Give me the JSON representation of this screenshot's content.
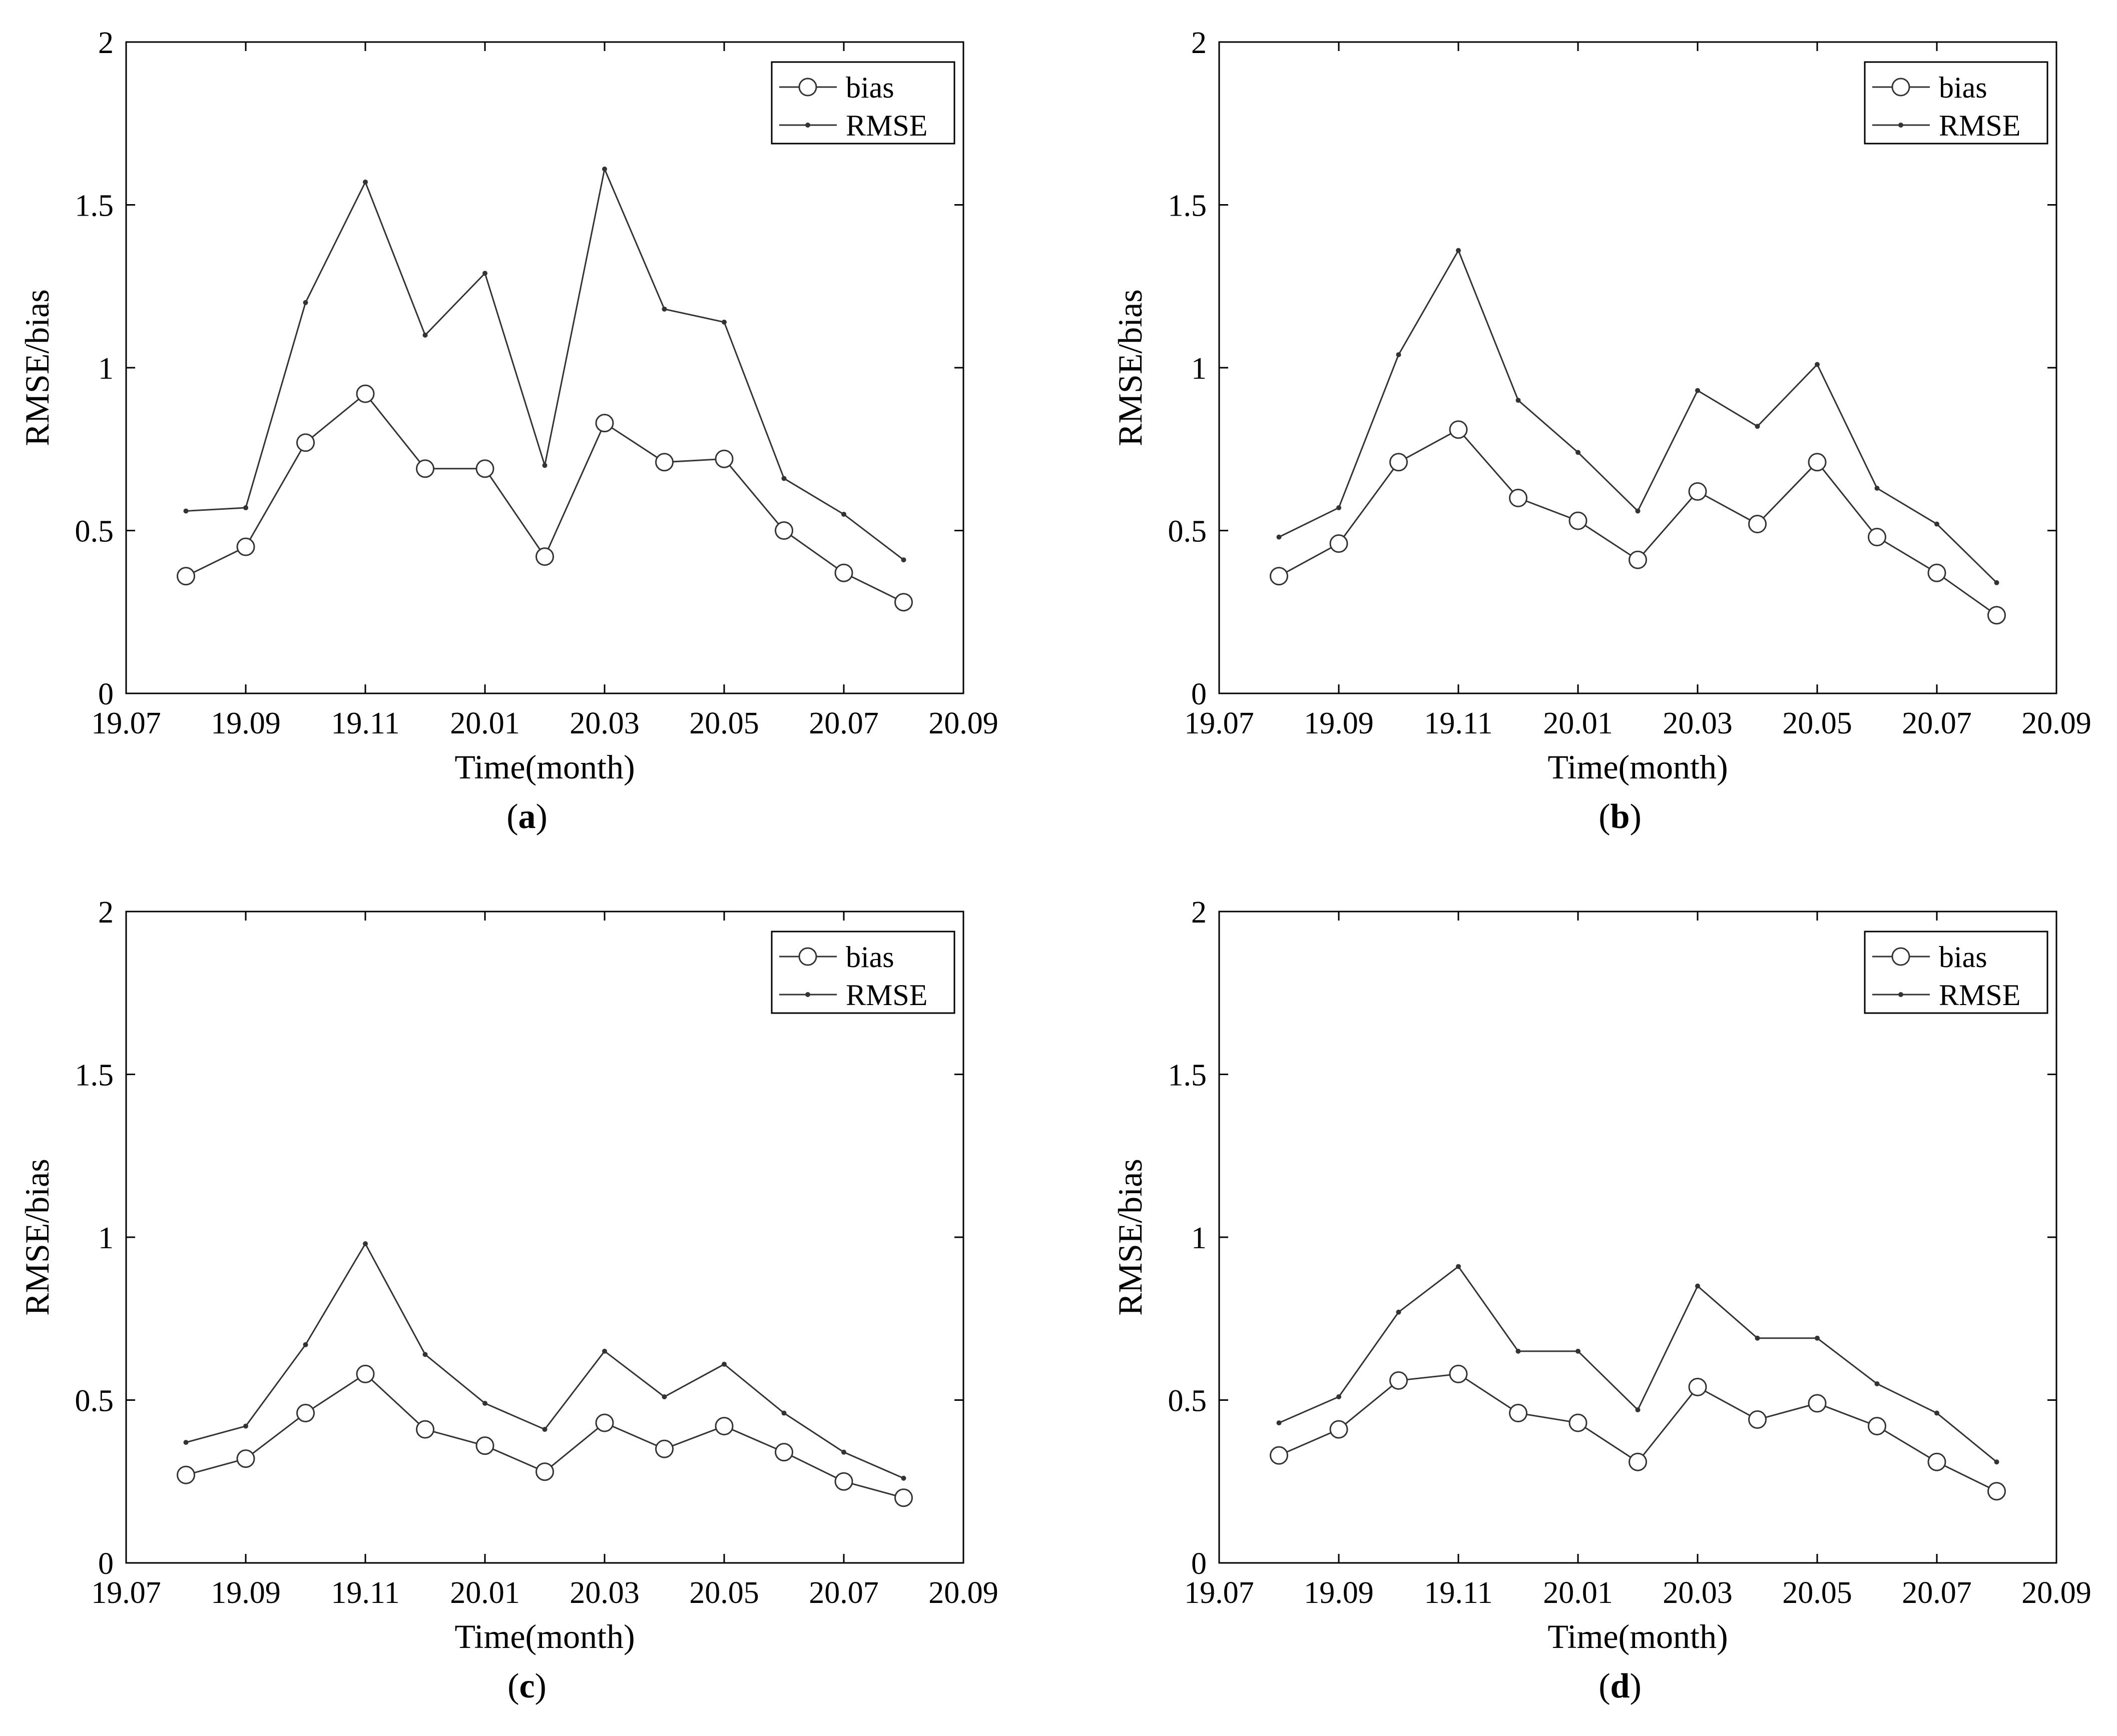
{
  "chart_data": [
    {
      "type": "line",
      "panel_label": "a",
      "categories": [
        "19.08",
        "19.09",
        "19.10",
        "19.11",
        "19.12",
        "20.01",
        "20.02",
        "20.03",
        "20.04",
        "20.05",
        "20.06",
        "20.07",
        "20.08"
      ],
      "x": [
        19.08,
        19.09,
        19.1,
        19.11,
        19.12,
        20.01,
        20.02,
        20.03,
        20.04,
        20.05,
        20.06,
        20.07,
        20.08
      ],
      "xlabel": "Time(month)",
      "ylabel": "RMSE/bias",
      "xticks": [
        "19.07",
        "19.09",
        "19.11",
        "20.01",
        "20.03",
        "20.05",
        "20.07",
        "20.09"
      ],
      "yticks": [
        "0",
        "0.5",
        "1",
        "1.5",
        "2"
      ],
      "ylim": [
        0,
        2
      ],
      "legend_position": "top-right",
      "series": [
        {
          "name": "bias",
          "marker": "circle",
          "values": [
            0.36,
            0.45,
            0.77,
            0.92,
            0.69,
            0.69,
            0.42,
            0.83,
            0.71,
            0.72,
            0.5,
            0.37,
            0.28
          ]
        },
        {
          "name": "RMSE",
          "marker": "dot",
          "values": [
            0.56,
            0.57,
            1.2,
            1.57,
            1.1,
            1.29,
            0.7,
            1.61,
            1.18,
            1.14,
            0.66,
            0.55,
            0.41
          ]
        }
      ]
    },
    {
      "type": "line",
      "panel_label": "b",
      "categories": [
        "19.08",
        "19.09",
        "19.10",
        "19.11",
        "19.12",
        "20.01",
        "20.02",
        "20.03",
        "20.04",
        "20.05",
        "20.06",
        "20.07",
        "20.08"
      ],
      "x": [
        19.08,
        19.09,
        19.1,
        19.11,
        19.12,
        20.01,
        20.02,
        20.03,
        20.04,
        20.05,
        20.06,
        20.07,
        20.08
      ],
      "xlabel": "Time(month)",
      "ylabel": "RMSE/bias",
      "xticks": [
        "19.07",
        "19.09",
        "19.11",
        "20.01",
        "20.03",
        "20.05",
        "20.07",
        "20.09"
      ],
      "yticks": [
        "0",
        "0.5",
        "1",
        "1.5",
        "2"
      ],
      "ylim": [
        0,
        2
      ],
      "legend_position": "top-right",
      "series": [
        {
          "name": "bias",
          "marker": "circle",
          "values": [
            0.36,
            0.46,
            0.71,
            0.81,
            0.6,
            0.53,
            0.41,
            0.62,
            0.52,
            0.71,
            0.48,
            0.37,
            0.24
          ]
        },
        {
          "name": "RMSE",
          "marker": "dot",
          "values": [
            0.48,
            0.57,
            1.04,
            1.36,
            0.9,
            0.74,
            0.56,
            0.93,
            0.82,
            1.01,
            0.63,
            0.52,
            0.34
          ]
        }
      ]
    },
    {
      "type": "line",
      "panel_label": "c",
      "categories": [
        "19.08",
        "19.09",
        "19.10",
        "19.11",
        "19.12",
        "20.01",
        "20.02",
        "20.03",
        "20.04",
        "20.05",
        "20.06",
        "20.07",
        "20.08"
      ],
      "x": [
        19.08,
        19.09,
        19.1,
        19.11,
        19.12,
        20.01,
        20.02,
        20.03,
        20.04,
        20.05,
        20.06,
        20.07,
        20.08
      ],
      "xlabel": "Time(month)",
      "ylabel": "RMSE/bias",
      "xticks": [
        "19.07",
        "19.09",
        "19.11",
        "20.01",
        "20.03",
        "20.05",
        "20.07",
        "20.09"
      ],
      "yticks": [
        "0",
        "0.5",
        "1",
        "1.5",
        "2"
      ],
      "ylim": [
        0,
        2
      ],
      "legend_position": "top-right",
      "series": [
        {
          "name": "bias",
          "marker": "circle",
          "values": [
            0.27,
            0.32,
            0.46,
            0.58,
            0.41,
            0.36,
            0.28,
            0.43,
            0.35,
            0.42,
            0.34,
            0.25,
            0.2
          ]
        },
        {
          "name": "RMSE",
          "marker": "dot",
          "values": [
            0.37,
            0.42,
            0.67,
            0.98,
            0.64,
            0.49,
            0.41,
            0.65,
            0.51,
            0.61,
            0.46,
            0.34,
            0.26
          ]
        }
      ]
    },
    {
      "type": "line",
      "panel_label": "d",
      "categories": [
        "19.08",
        "19.09",
        "19.10",
        "19.11",
        "19.12",
        "20.01",
        "20.02",
        "20.03",
        "20.04",
        "20.05",
        "20.06",
        "20.07",
        "20.08"
      ],
      "x": [
        19.08,
        19.09,
        19.1,
        19.11,
        19.12,
        20.01,
        20.02,
        20.03,
        20.04,
        20.05,
        20.06,
        20.07,
        20.08
      ],
      "xlabel": "Time(month)",
      "ylabel": "RMSE/bias",
      "xticks": [
        "19.07",
        "19.09",
        "19.11",
        "20.01",
        "20.03",
        "20.05",
        "20.07",
        "20.09"
      ],
      "yticks": [
        "0",
        "0.5",
        "1",
        "1.5",
        "2"
      ],
      "ylim": [
        0,
        2
      ],
      "legend_position": "top-right",
      "series": [
        {
          "name": "bias",
          "marker": "circle",
          "values": [
            0.33,
            0.41,
            0.56,
            0.58,
            0.46,
            0.43,
            0.31,
            0.54,
            0.44,
            0.49,
            0.42,
            0.31,
            0.22
          ]
        },
        {
          "name": "RMSE",
          "marker": "dot",
          "values": [
            0.43,
            0.51,
            0.77,
            0.91,
            0.65,
            0.65,
            0.47,
            0.85,
            0.69,
            0.69,
            0.55,
            0.46,
            0.31
          ]
        }
      ]
    }
  ],
  "colors": {
    "line": "#333333",
    "axis": "#000000",
    "background": "#ffffff"
  }
}
